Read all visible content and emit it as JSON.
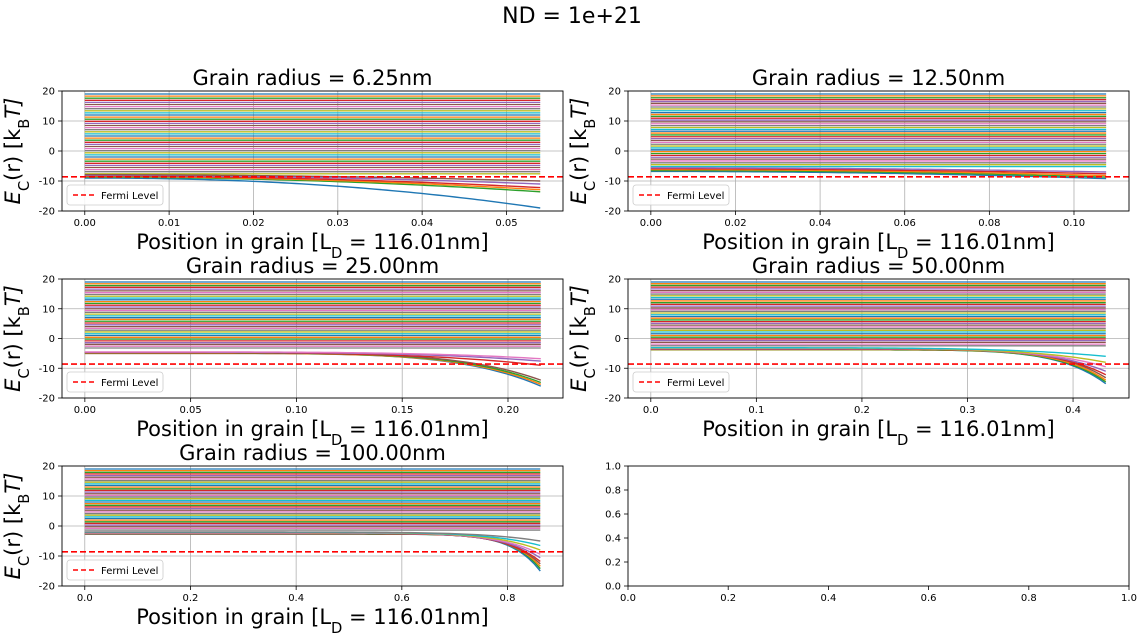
{
  "figure": {
    "suptitle": "ND = 1e+21"
  },
  "colors": {
    "cycle": [
      "#1f77b4",
      "#ff7f0e",
      "#2ca02c",
      "#d62728",
      "#9467bd",
      "#8c564b",
      "#e377c2",
      "#7f7f7f",
      "#bcbd22",
      "#17becf"
    ],
    "fermi": "#ff0000",
    "grid": "#b0b0b0"
  },
  "chart_data": [
    {
      "type": "line",
      "title": "Grain radius = 6.25nm",
      "xlabel": "Position in grain [L",
      "xlabel_sub": "D",
      "xlabel_tail": " = 116.01nm]",
      "ylabel": "E",
      "ylabel_sub1": "C",
      "ylabel_mid": "(r) [k",
      "ylabel_sub2": "B",
      "ylabel_tail": "T]",
      "xlim": [
        -0.0027,
        0.0567
      ],
      "ylim": [
        -20,
        20
      ],
      "xticks": [
        0.0,
        0.01,
        0.02,
        0.03,
        0.04,
        0.05
      ],
      "xtick_labels": [
        "0.00",
        "0.01",
        "0.02",
        "0.03",
        "0.04",
        "0.05"
      ],
      "yticks": [
        -20,
        -10,
        0,
        10,
        20
      ],
      "grid": true,
      "x_range": [
        0,
        0.054
      ],
      "fermi_level": -8.6,
      "legend": {
        "label": "Fermi Level",
        "placement": "lower-left"
      },
      "series_band": {
        "count": 40,
        "top": 19,
        "spacing": 0.7
      },
      "bent_series": [
        {
          "start": -9.0,
          "end": -19.0,
          "power": 2.2,
          "color": "#1f77b4"
        },
        {
          "start": -8.7,
          "end": -13.6,
          "power": 2.0,
          "color": "#2ca02c"
        },
        {
          "start": -8.5,
          "end": -12.9,
          "power": 2.0,
          "color": "#ff7f0e"
        },
        {
          "start": -8.3,
          "end": -12.2,
          "power": 2.0,
          "color": "#d62728"
        },
        {
          "start": -8.1,
          "end": -11.0,
          "power": 2.0,
          "color": "#9467bd"
        },
        {
          "start": -7.9,
          "end": -10.0,
          "power": 2.0,
          "color": "#8c564b"
        }
      ]
    },
    {
      "type": "line",
      "title": "Grain radius = 12.50nm",
      "xlabel": "Position in grain [L",
      "xlabel_sub": "D",
      "xlabel_tail": " = 116.01nm]",
      "ylabel": "E",
      "ylabel_sub1": "C",
      "ylabel_mid": "(r) [k",
      "ylabel_sub2": "B",
      "ylabel_tail": "T]",
      "xlim": [
        -0.0054,
        0.113
      ],
      "ylim": [
        -20,
        20
      ],
      "xticks": [
        0.0,
        0.02,
        0.04,
        0.06,
        0.08,
        0.1
      ],
      "xtick_labels": [
        "0.00",
        "0.02",
        "0.04",
        "0.06",
        "0.08",
        "0.10"
      ],
      "yticks": [
        -20,
        -10,
        0,
        10,
        20
      ],
      "grid": true,
      "x_range": [
        0,
        0.1076
      ],
      "fermi_level": -8.6,
      "legend": {
        "label": "Fermi Level",
        "placement": "lower-left"
      },
      "series_band": {
        "count": 40,
        "top": 19,
        "spacing": 0.62
      },
      "bent_series": [
        {
          "start": -6.8,
          "end": -9.2,
          "power": 2.0,
          "color": "#1f77b4"
        },
        {
          "start": -6.5,
          "end": -8.7,
          "power": 2.0,
          "color": "#2ca02c"
        },
        {
          "start": -6.2,
          "end": -8.2,
          "power": 2.0,
          "color": "#ff7f0e"
        },
        {
          "start": -5.9,
          "end": -7.6,
          "power": 2.0,
          "color": "#d62728"
        },
        {
          "start": -5.6,
          "end": -7.0,
          "power": 2.0,
          "color": "#9467bd"
        }
      ]
    },
    {
      "type": "line",
      "title": "Grain radius = 25.00nm",
      "xlabel": "Position in grain [L",
      "xlabel_sub": "D",
      "xlabel_tail": " = 116.01nm]",
      "ylabel": "E",
      "ylabel_sub1": "C",
      "ylabel_mid": "(r) [k",
      "ylabel_sub2": "B",
      "ylabel_tail": "T]",
      "xlim": [
        -0.0108,
        0.226
      ],
      "ylim": [
        -20,
        20
      ],
      "xticks": [
        0.0,
        0.05,
        0.1,
        0.15,
        0.2
      ],
      "xtick_labels": [
        "0.00",
        "0.05",
        "0.10",
        "0.15",
        "0.20"
      ],
      "yticks": [
        -20,
        -10,
        0,
        10,
        20
      ],
      "grid": true,
      "x_range": [
        0,
        0.2155
      ],
      "fermi_level": -8.6,
      "legend": {
        "label": "Fermi Level",
        "placement": "lower-left"
      },
      "series_band": {
        "count": 40,
        "top": 19,
        "spacing": 0.6
      },
      "bent_series": [
        {
          "start": -5.0,
          "end": -16.0,
          "power": 6.0,
          "color": "#1f77b4"
        },
        {
          "start": -5.0,
          "end": -15.4,
          "power": 6.0,
          "color": "#ff7f0e"
        },
        {
          "start": -4.9,
          "end": -14.8,
          "power": 6.0,
          "color": "#2ca02c"
        },
        {
          "start": -4.8,
          "end": -14.0,
          "power": 6.0,
          "color": "#8c564b"
        },
        {
          "start": -4.7,
          "end": -9.0,
          "power": 4.0,
          "color": "#d62728"
        },
        {
          "start": -4.6,
          "end": -7.6,
          "power": 4.0,
          "color": "#9467bd"
        },
        {
          "start": -4.5,
          "end": -6.8,
          "power": 4.0,
          "color": "#e377c2"
        }
      ]
    },
    {
      "type": "line",
      "title": "Grain radius = 50.00nm",
      "xlabel": "Position in grain [L",
      "xlabel_sub": "D",
      "xlabel_tail": " = 116.01nm]",
      "ylabel": "E",
      "ylabel_sub1": "C",
      "ylabel_mid": "(r) [k",
      "ylabel_sub2": "B",
      "ylabel_tail": "T]",
      "xlim": [
        -0.0216,
        0.453
      ],
      "ylim": [
        -20,
        20
      ],
      "xticks": [
        0.0,
        0.1,
        0.2,
        0.3,
        0.4
      ],
      "xtick_labels": [
        "0.0",
        "0.1",
        "0.2",
        "0.3",
        "0.4"
      ],
      "yticks": [
        -20,
        -10,
        0,
        10,
        20
      ],
      "grid": true,
      "x_range": [
        0,
        0.431
      ],
      "fermi_level": -8.6,
      "legend": {
        "label": "Fermi Level",
        "placement": "lower-left"
      },
      "series_band": {
        "count": 40,
        "top": 19,
        "spacing": 0.58
      },
      "bent_series": [
        {
          "start": -3.8,
          "end": -15.2,
          "power": 10.0,
          "color": "#1f77b4"
        },
        {
          "start": -3.8,
          "end": -14.6,
          "power": 10.0,
          "color": "#2ca02c"
        },
        {
          "start": -3.7,
          "end": -14.0,
          "power": 10.0,
          "color": "#ff7f0e"
        },
        {
          "start": -3.6,
          "end": -13.2,
          "power": 10.0,
          "color": "#8c564b"
        },
        {
          "start": -3.5,
          "end": -12.2,
          "power": 9.0,
          "color": "#d62728"
        },
        {
          "start": -3.4,
          "end": -11.0,
          "power": 8.0,
          "color": "#9467bd"
        },
        {
          "start": -3.3,
          "end": -9.5,
          "power": 7.0,
          "color": "#e377c2"
        },
        {
          "start": -3.2,
          "end": -8.0,
          "power": 6.0,
          "color": "#bcbd22"
        },
        {
          "start": -3.1,
          "end": -6.0,
          "power": 5.0,
          "color": "#17becf"
        }
      ]
    },
    {
      "type": "line",
      "title": "Grain radius = 100.00nm",
      "xlabel": "Position in grain [L",
      "xlabel_sub": "D",
      "xlabel_tail": " = 116.01nm]",
      "ylabel": "E",
      "ylabel_sub1": "C",
      "ylabel_mid": "(r) [k",
      "ylabel_sub2": "B",
      "ylabel_tail": "T]",
      "xlim": [
        -0.0431,
        0.905
      ],
      "ylim": [
        -20,
        20
      ],
      "xticks": [
        0.0,
        0.2,
        0.4,
        0.6,
        0.8
      ],
      "xtick_labels": [
        "0.0",
        "0.2",
        "0.4",
        "0.6",
        "0.8"
      ],
      "yticks": [
        -20,
        -10,
        0,
        10,
        20
      ],
      "grid": true,
      "x_range": [
        0,
        0.862
      ],
      "fermi_level": -8.6,
      "legend": {
        "label": "Fermi Level",
        "placement": "lower-left"
      },
      "series_band": {
        "count": 40,
        "top": 19,
        "spacing": 0.55
      },
      "bent_series": [
        {
          "start": -2.7,
          "end": -15.0,
          "power": 16.0,
          "color": "#1f77b4"
        },
        {
          "start": -2.7,
          "end": -14.2,
          "power": 16.0,
          "color": "#2ca02c"
        },
        {
          "start": -2.6,
          "end": -13.4,
          "power": 15.0,
          "color": "#ff7f0e"
        },
        {
          "start": -2.6,
          "end": -12.6,
          "power": 14.0,
          "color": "#8c564b"
        },
        {
          "start": -2.5,
          "end": -11.8,
          "power": 13.0,
          "color": "#d62728"
        },
        {
          "start": -2.4,
          "end": -10.6,
          "power": 12.0,
          "color": "#9467bd"
        },
        {
          "start": -2.3,
          "end": -9.4,
          "power": 11.0,
          "color": "#e377c2"
        },
        {
          "start": -2.2,
          "end": -8.0,
          "power": 10.0,
          "color": "#bcbd22"
        },
        {
          "start": -2.1,
          "end": -6.5,
          "power": 9.0,
          "color": "#17becf"
        },
        {
          "start": -2.0,
          "end": -5.0,
          "power": 8.0,
          "color": "#7f7f7f"
        }
      ]
    },
    {
      "type": "line",
      "title": "",
      "xlabel": "",
      "ylabel": "",
      "xlim": [
        0,
        1
      ],
      "ylim": [
        0,
        1
      ],
      "xticks": [
        0.0,
        0.2,
        0.4,
        0.6,
        0.8,
        1.0
      ],
      "xtick_labels": [
        "0.0",
        "0.2",
        "0.4",
        "0.6",
        "0.8",
        "1.0"
      ],
      "yticks": [
        0.0,
        0.2,
        0.4,
        0.6,
        0.8,
        1.0
      ],
      "ytick_labels": [
        "0.0",
        "0.2",
        "0.4",
        "0.6",
        "0.8",
        "1.0"
      ],
      "grid": false,
      "empty": true
    }
  ]
}
